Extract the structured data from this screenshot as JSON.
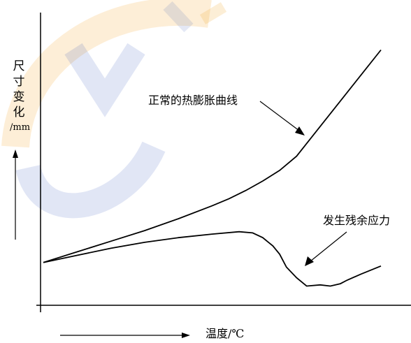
{
  "chart_data": {
    "type": "line",
    "ylabel_chars": [
      "尺",
      "寸",
      "变",
      "化"
    ],
    "ylabel_unit": "/mm",
    "xlabel": "温度/℃",
    "annotations": [
      {
        "text": "正常的热膨胀曲线",
        "series": 0
      },
      {
        "text": "发生残余应力",
        "series": 1
      }
    ],
    "xlim": [
      0,
      100
    ],
    "ylim": [
      0,
      100
    ],
    "grid": false,
    "series": [
      {
        "x": [
          0,
          10,
          20,
          30,
          40,
          50,
          55,
          60,
          65,
          70,
          75,
          80,
          85,
          90,
          95,
          100
        ],
        "y": [
          14,
          18.5,
          23,
          27.5,
          32.5,
          38,
          41,
          44.5,
          48.5,
          53,
          59,
          68,
          77,
          86,
          95,
          104
        ]
      },
      {
        "x": [
          0,
          10,
          20,
          30,
          40,
          50,
          58,
          62,
          65,
          68,
          70,
          72,
          75,
          78,
          82,
          85,
          88,
          90,
          94,
          100
        ],
        "y": [
          14,
          17,
          20,
          22.5,
          24.5,
          26,
          27,
          26.5,
          24.5,
          21,
          17.5,
          12,
          7.5,
          4,
          4.5,
          4,
          5,
          6.5,
          9,
          12.5
        ]
      }
    ]
  },
  "watermark": {
    "color_blue": "#2b4eb5",
    "color_orange": "#f2a323"
  }
}
